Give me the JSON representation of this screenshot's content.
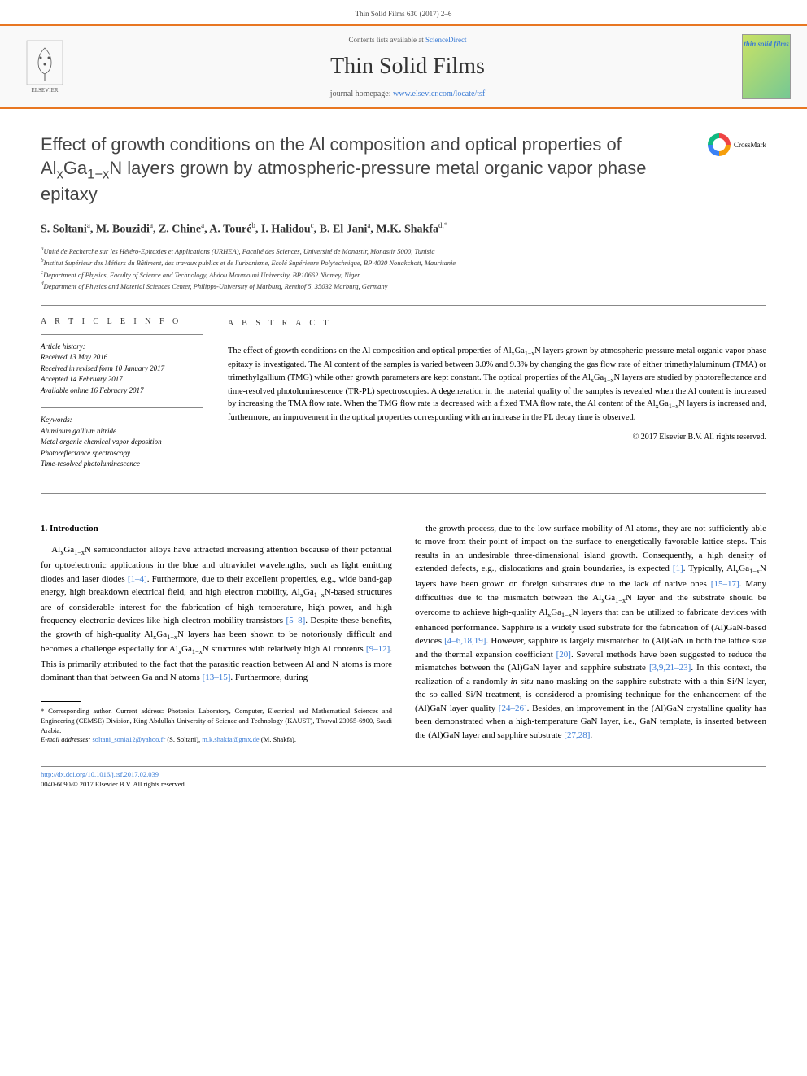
{
  "header": {
    "running_head": "Thin Solid Films 630 (2017) 2–6"
  },
  "banner": {
    "elsevier_label": "ELSEVIER",
    "contents_prefix": "Contents lists available at ",
    "contents_link": "ScienceDirect",
    "journal_title": "Thin Solid Films",
    "homepage_prefix": "journal homepage: ",
    "homepage_url": "www.elsevier.com/locate/tsf",
    "cover_text": "thin solid films"
  },
  "crossmark": {
    "label": "CrossMark"
  },
  "article": {
    "title_html": "Effect of growth conditions on the Al composition and optical properties of Al<sub>x</sub>Ga<sub>1−x</sub>N layers grown by atmospheric-pressure metal organic vapor phase epitaxy",
    "authors_html": "S. Soltani<sup>a</sup>, M. Bouzidi<sup>a</sup>, Z. Chine<sup>a</sup>, A. Touré<sup>b</sup>, I. Halidou<sup>c</sup>, B. El Jani<sup>a</sup>, M.K. Shakfa<sup>d,*</sup>",
    "affiliations": {
      "a": "Unité de Recherche sur les Hétéro-Epitaxies et Applications (URHEA), Faculté des Sciences, Université de Monastir, Monastir 5000, Tunisia",
      "b": "Institut Supérieur des Métiers du Bâtiment, des travaux publics et de l'urbanisme, Ecolé Supérieure Polytechnique, BP 4030 Nouakchott, Mauritanie",
      "c": "Department of Physics, Faculty of Science and Technology, Abdou Moumouni University, BP10662 Niamey, Niger",
      "d": "Department of Physics and Material Sciences Center, Philipps-University of Marburg, Renthof 5, 35032 Marburg, Germany"
    }
  },
  "info": {
    "label": "A R T I C L E   I N F O",
    "history_hdr": "Article history:",
    "history": [
      "Received 13 May 2016",
      "Received in revised form 10 January 2017",
      "Accepted 14 February 2017",
      "Available online 16 February 2017"
    ],
    "keywords_hdr": "Keywords:",
    "keywords": [
      "Aluminum gallium nitride",
      "Metal organic chemical vapor deposition",
      "Photoreflectance spectroscopy",
      "Time-resolved photoluminescence"
    ]
  },
  "abstract": {
    "label": "A B S T R A C T",
    "text_html": "The effect of growth conditions on the Al composition and optical properties of Al<sub>x</sub>Ga<sub>1−x</sub>N layers grown by atmospheric-pressure metal organic vapor phase epitaxy is investigated. The Al content of the samples is varied between 3.0% and 9.3% by changing the gas flow rate of either trimethylaluminum (TMA) or trimethylgallium (TMG) while other growth parameters are kept constant. The optical properties of the Al<sub>x</sub>Ga<sub>1−x</sub>N layers are studied by photoreflectance and time-resolved photoluminescence (TR-PL) spectroscopies. A degeneration in the material quality of the samples is revealed when the Al content is increased by increasing the TMA flow rate. When the TMG flow rate is decreased with a fixed TMA flow rate, the Al content of the Al<sub>x</sub>Ga<sub>1−x</sub>N layers is increased and, furthermore, an improvement in the optical properties corresponding with an increase in the PL decay time is observed.",
    "copyright": "© 2017 Elsevier B.V. All rights reserved."
  },
  "body": {
    "section_heading": "1. Introduction",
    "col1_html": "Al<sub>x</sub>Ga<sub>1−x</sub>N semiconductor alloys have attracted increasing attention because of their potential for optoelectronic applications in the blue and ultraviolet wavelengths, such as light emitting diodes and laser diodes <span class='ref-link'>[1–4]</span>. Furthermore, due to their excellent properties, e.g., wide band-gap energy, high breakdown electrical field, and high electron mobility, Al<sub>x</sub>Ga<sub>1−x</sub>N-based structures are of considerable interest for the fabrication of high temperature, high power, and high frequency electronic devices like high electron mobility transistors <span class='ref-link'>[5–8]</span>. Despite these benefits, the growth of high-quality Al<sub>x</sub>Ga<sub>1−x</sub>N layers has been shown to be notoriously difficult and becomes a challenge especially for Al<sub>x</sub>Ga<sub>1−x</sub>N structures with relatively high Al contents <span class='ref-link'>[9–12]</span>. This is primarily attributed to the fact that the parasitic reaction between Al and N atoms is more dominant than that between Ga and N atoms <span class='ref-link'>[13–15]</span>. Furthermore, during",
    "col2_html": "the growth process, due to the low surface mobility of Al atoms, they are not sufficiently able to move from their point of impact on the surface to energetically favorable lattice steps. This results in an undesirable three-dimensional island growth. Consequently, a high density of extended defects, e.g., dislocations and grain boundaries, is expected <span class='ref-link'>[1]</span>. Typically, Al<sub>x</sub>Ga<sub>1−x</sub>N layers have been grown on foreign substrates due to the lack of native ones <span class='ref-link'>[15–17]</span>. Many difficulties due to the mismatch between the Al<sub>x</sub>Ga<sub>1−x</sub>N layer and the substrate should be overcome to achieve high-quality Al<sub>x</sub>Ga<sub>1−x</sub>N layers that can be utilized to fabricate devices with enhanced performance. Sapphire is a widely used substrate for the fabrication of (Al)GaN-based devices <span class='ref-link'>[4–6,18,19]</span>. However, sapphire is largely mismatched to (Al)GaN in both the lattice size and the thermal expansion coefficient <span class='ref-link'>[20]</span>. Several methods have been suggested to reduce the mismatches between the (Al)GaN layer and sapphire substrate <span class='ref-link'>[3,9,21–23]</span>. In this context, the realization of a randomly <i>in situ</i> nano-masking on the sapphire substrate with a thin Si/N layer, the so-called Si/N treatment, is considered a promising technique for the enhancement of the (Al)GaN layer quality <span class='ref-link'>[24–26]</span>. Besides, an improvement in the (Al)GaN crystalline quality has been demonstrated when a high-temperature GaN layer, i.e., GaN template, is inserted between the (Al)GaN layer and sapphire substrate <span class='ref-link'>[27,28]</span>."
  },
  "footnote": {
    "corresponding": "* Corresponding author. Current address: Photonics Laboratory, Computer, Electrical and Mathematical Sciences and Engineering (CEMSE) Division, King Abdullah University of Science and Technology (KAUST), Thuwal 23955-6900, Saudi Arabia.",
    "email_label": "E-mail addresses: ",
    "email1": "soltani_sonia12@yahoo.fr",
    "email1_who": " (S. Soltani), ",
    "email2": "m.k.shakfa@gmx.de",
    "email2_who": " (M. Shakfa)."
  },
  "footer": {
    "doi": "http://dx.doi.org/10.1016/j.tsf.2017.02.039",
    "issn_line": "0040-6090/© 2017 Elsevier B.V. All rights reserved."
  },
  "colors": {
    "accent_orange": "#e87722",
    "link_blue": "#3a7bd5",
    "text_gray": "#444444"
  }
}
